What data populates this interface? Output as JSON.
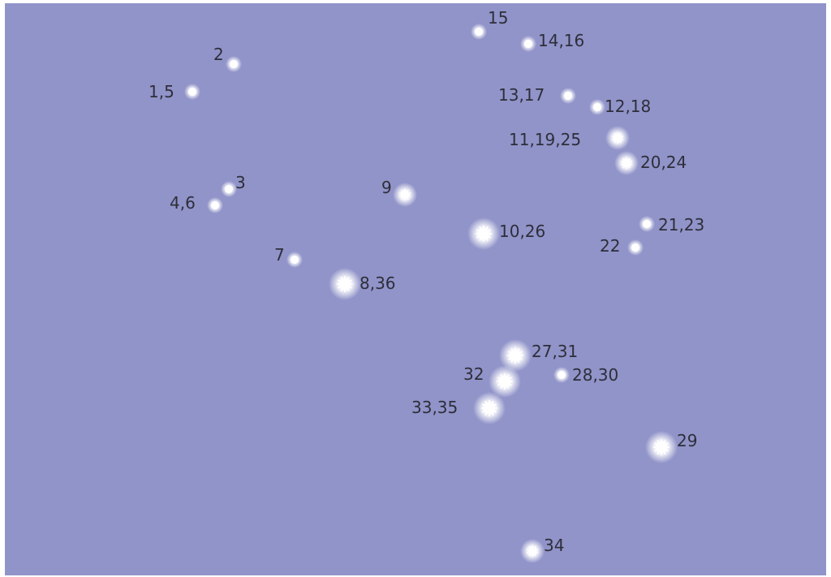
{
  "colors": {
    "sky": "#9194c9",
    "star": "#ffffff",
    "label": "#2e2e3a"
  },
  "stars": [
    {
      "label": "1,5",
      "size": "small"
    },
    {
      "label": "2",
      "size": "small"
    },
    {
      "label": "3",
      "size": "small"
    },
    {
      "label": "4,6",
      "size": "small"
    },
    {
      "label": "7",
      "size": "small"
    },
    {
      "label": "8,36",
      "size": "large"
    },
    {
      "label": "9",
      "size": "medium"
    },
    {
      "label": "10,26",
      "size": "large"
    },
    {
      "label": "11,19,25",
      "size": "medium"
    },
    {
      "label": "12,18",
      "size": "small"
    },
    {
      "label": "13,17",
      "size": "small"
    },
    {
      "label": "14,16",
      "size": "small"
    },
    {
      "label": "15",
      "size": "small"
    },
    {
      "label": "20,24",
      "size": "medium"
    },
    {
      "label": "21,23",
      "size": "small"
    },
    {
      "label": "22",
      "size": "small"
    },
    {
      "label": "27,31",
      "size": "large"
    },
    {
      "label": "28,30",
      "size": "small"
    },
    {
      "label": "29",
      "size": "large"
    },
    {
      "label": "32",
      "size": "large"
    },
    {
      "label": "33,35",
      "size": "large"
    },
    {
      "label": "34",
      "size": "medium"
    }
  ]
}
